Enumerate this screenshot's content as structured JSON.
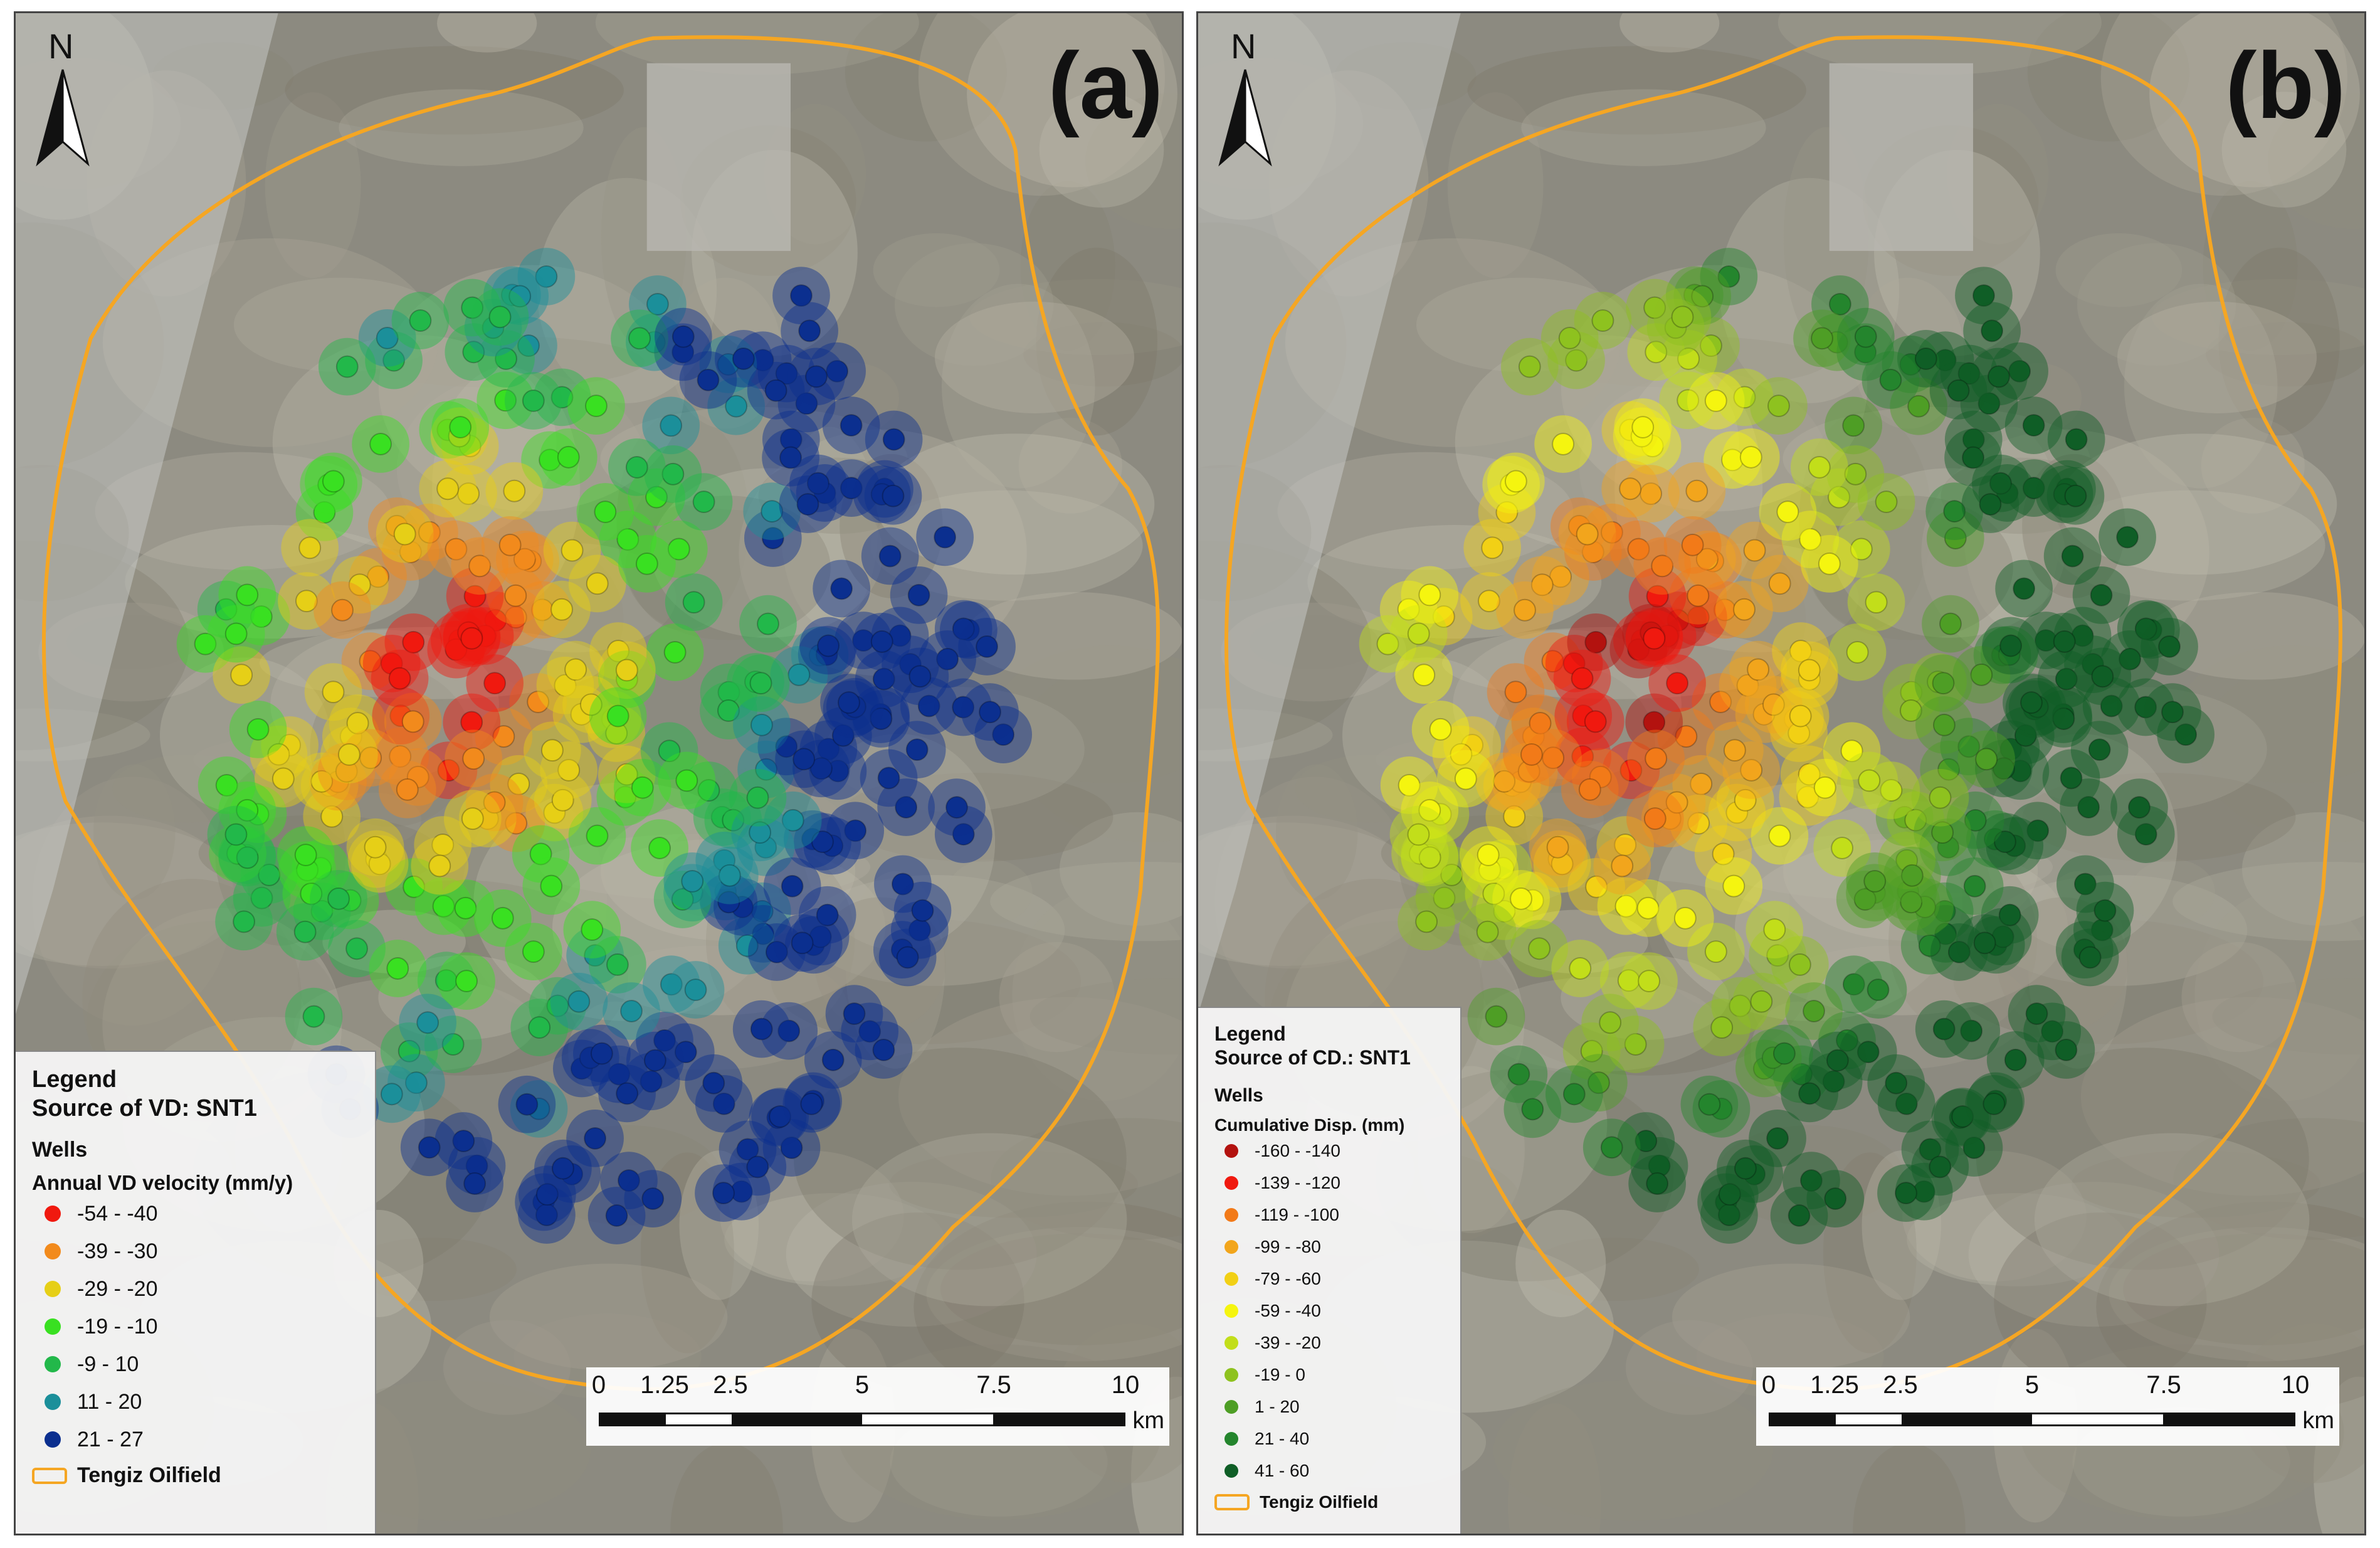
{
  "panels": [
    {
      "label": "(a)",
      "north": "N",
      "legend": {
        "title": "Legend",
        "source": "Source of VD: SNT1",
        "wells": "Wells",
        "field": "Annual VD velocity (mm/y)",
        "classes": [
          {
            "label": "-54 - -40",
            "color": "#f0190f"
          },
          {
            "label": "-39 - -30",
            "color": "#f28a1c"
          },
          {
            "label": "-29 - -20",
            "color": "#e6cf17"
          },
          {
            "label": "-19 - -10",
            "color": "#39e021"
          },
          {
            "label": "-9 - 10",
            "color": "#22b84a"
          },
          {
            "label": "11 - 20",
            "color": "#1b8f9a"
          },
          {
            "label": "21 - 27",
            "color": "#0b2f8f"
          }
        ],
        "outline_label": "Tengiz Oilfield"
      },
      "scalebar": {
        "ticks": [
          "0",
          "1.25",
          "2.5",
          "5",
          "7.5",
          "10"
        ],
        "unit": "km"
      }
    },
    {
      "label": "(b)",
      "north": "N",
      "legend": {
        "title": "Legend",
        "source": "Source of CD.: SNT1",
        "wells": "Wells",
        "field": "Cumulative Disp. (mm)",
        "classes": [
          {
            "label": "-160 - -140",
            "color": "#b3120f"
          },
          {
            "label": "-139 - -120",
            "color": "#f0190f"
          },
          {
            "label": "-119 - -100",
            "color": "#f27a18"
          },
          {
            "label": "-99 - -80",
            "color": "#f2a51c"
          },
          {
            "label": "-79 - -60",
            "color": "#f2d015"
          },
          {
            "label": "-59 - -40",
            "color": "#f5f50f"
          },
          {
            "label": "-39 - -20",
            "color": "#c2de1a"
          },
          {
            "label": "-19 - 0",
            "color": "#8ec21f"
          },
          {
            "label": "1 - 20",
            "color": "#4e9e25"
          },
          {
            "label": "21 - 40",
            "color": "#24852d"
          },
          {
            "label": "41 - 60",
            "color": "#0f5e26"
          }
        ],
        "outline_label": "Tengiz Oilfield"
      },
      "scalebar": {
        "ticks": [
          "0",
          "1.25",
          "2.5",
          "5",
          "7.5",
          "10"
        ],
        "unit": "km"
      }
    }
  ]
}
